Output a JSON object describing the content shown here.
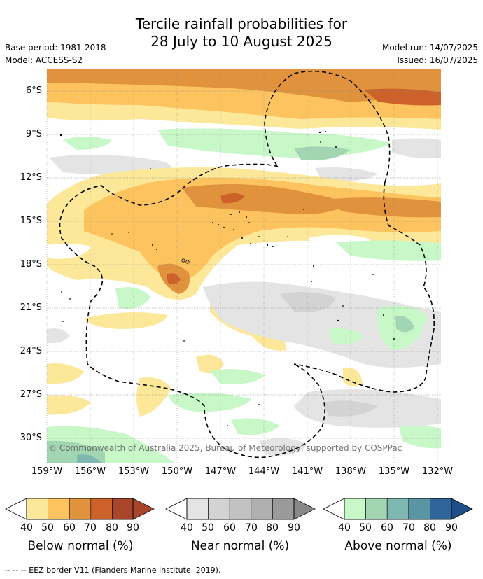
{
  "title_line1": "Tercile rainfall probabilities for",
  "title_line2": "28 July to 10 August 2025",
  "meta": {
    "base_period": "Base period: 1981-2018",
    "model": "Model: ACCESS-S2",
    "model_run": "Model run: 14/07/2025",
    "issued": "Issued: 16/07/2025"
  },
  "map": {
    "lat_labels": [
      "6°S",
      "9°S",
      "12°S",
      "15°S",
      "18°S",
      "21°S",
      "24°S",
      "27°S",
      "30°S"
    ],
    "lon_labels": [
      "159°W",
      "156°W",
      "153°W",
      "150°W",
      "147°W",
      "144°W",
      "141°W",
      "138°W",
      "135°W",
      "132°W"
    ],
    "copyright": "© Commonwealth of Australia 2025, Bureau of Meteorology, supported by COSPPac",
    "colors": {
      "below": [
        "#fde89a",
        "#fdc35f",
        "#e0923d",
        "#cc6129",
        "#a8452a"
      ],
      "near": [
        "#e4e4e4",
        "#d3d3d3",
        "#c2c2c2",
        "#b0b0b0",
        "#9a9a9a"
      ],
      "above": [
        "#c8f7c8",
        "#a2d6b2",
        "#7eb8b0",
        "#5a95a3",
        "#2f6598"
      ]
    }
  },
  "legend": {
    "ticks": [
      "40",
      "50",
      "60",
      "70",
      "80",
      "90"
    ],
    "below_title": "Below normal (%)",
    "near_title": "Near normal (%)",
    "above_title": "Above normal (%)"
  },
  "footer": "--  --  -- EEZ border V11 (Flanders Marine Institute, 2019)."
}
